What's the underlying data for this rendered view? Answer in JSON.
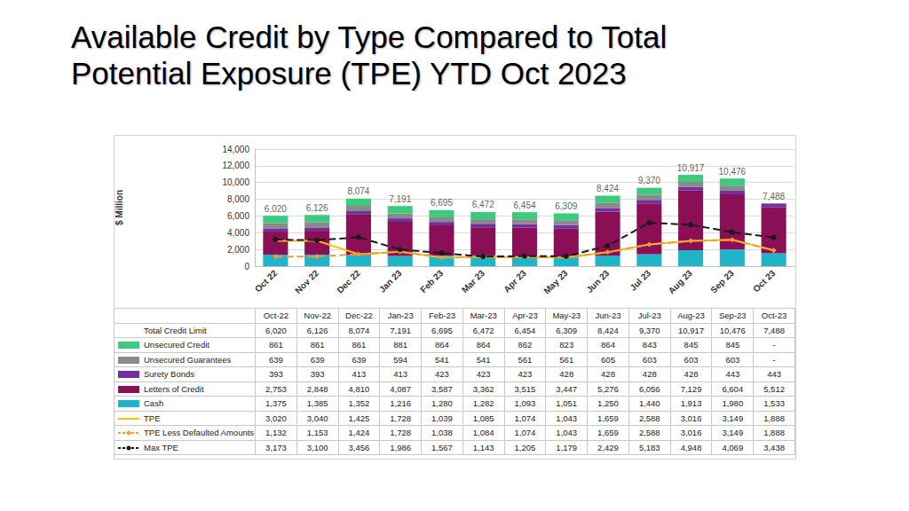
{
  "chart_data": {
    "type": "bar",
    "title": "Available Credit by Type Compared to Total\nPotential Exposure (TPE) YTD Oct 2023",
    "y_label": "$ Million",
    "categories": [
      "Oct 22",
      "Nov 22",
      "Dec 22",
      "Jan 23",
      "Feb 23",
      "Mar 23",
      "Apr 23",
      "May 23",
      "Jun 23",
      "Jul 23",
      "Aug 23",
      "Sep 23",
      "Oct 23"
    ],
    "table_header": [
      "Oct-22",
      "Nov-22",
      "Dec-22",
      "Jan-23",
      "Feb-23",
      "Mar-23",
      "Apr-23",
      "May-23",
      "Jun-23",
      "Jul-23",
      "Aug-23",
      "Sep-23",
      "Oct-23"
    ],
    "ylim": [
      0,
      14000
    ],
    "yticks": [
      0,
      {
        "value": 2000,
        "label": "2,000"
      },
      {
        "value": 4000,
        "label": "4,000"
      },
      {
        "value": 6000,
        "label": "6,000"
      },
      {
        "value": 8000,
        "label": "8,000"
      },
      {
        "value": 10000,
        "label": "10,000"
      },
      {
        "value": 12000,
        "label": "12,000"
      },
      {
        "value": 14000,
        "label": "14,000"
      }
    ],
    "grid": true,
    "stacked": true,
    "data_labels": true,
    "totals": {
      "name": "Total Credit Limit",
      "values": [
        6020,
        6126,
        8074,
        7191,
        6695,
        6472,
        6454,
        6309,
        8424,
        9370,
        10917,
        10476,
        7488
      ],
      "value_labels": [
        "6,020",
        "6,126",
        "8,074",
        "7,191",
        "6,695",
        "6,472",
        "6,454",
        "6,309",
        "8,424",
        "9,370",
        "10,917",
        "10,476",
        "7,488"
      ]
    },
    "series": [
      {
        "name": "Unsecured Credit",
        "type": "bar",
        "color": "#3ccb7c",
        "values": [
          861,
          861,
          861,
          881,
          864,
          864,
          862,
          823,
          864,
          843,
          845,
          845,
          null
        ],
        "value_labels": [
          "861",
          "861",
          "861",
          "881",
          "864",
          "864",
          "862",
          "823",
          "864",
          "843",
          "845",
          "845",
          "-"
        ]
      },
      {
        "name": "Unsecured Guarantees",
        "type": "bar",
        "color": "#8a8a8a",
        "values": [
          639,
          639,
          639,
          594,
          541,
          541,
          561,
          561,
          605,
          603,
          603,
          603,
          null
        ],
        "value_labels": [
          "639",
          "639",
          "639",
          "594",
          "541",
          "541",
          "561",
          "561",
          "605",
          "603",
          "603",
          "603",
          "-"
        ]
      },
      {
        "name": "Surety Bonds",
        "type": "bar",
        "color": "#7030a0",
        "values": [
          393,
          393,
          413,
          413,
          423,
          423,
          423,
          428,
          428,
          428,
          428,
          443,
          443
        ],
        "value_labels": [
          "393",
          "393",
          "413",
          "413",
          "423",
          "423",
          "423",
          "428",
          "428",
          "428",
          "428",
          "443",
          "443"
        ]
      },
      {
        "name": "Letters of Credit",
        "type": "bar",
        "color": "#8b0f56",
        "values": [
          2753,
          2848,
          4810,
          4087,
          3587,
          3362,
          3515,
          3447,
          5276,
          6056,
          7129,
          6604,
          5512
        ],
        "value_labels": [
          "2,753",
          "2,848",
          "4,810",
          "4,087",
          "3,587",
          "3,362",
          "3,515",
          "3,447",
          "5,276",
          "6,056",
          "7,129",
          "6,604",
          "5,512"
        ]
      },
      {
        "name": "Cash",
        "type": "bar",
        "color": "#1fb4c8",
        "values": [
          1375,
          1385,
          1352,
          1216,
          1280,
          1282,
          1093,
          1051,
          1250,
          1440,
          1913,
          1980,
          1533
        ],
        "value_labels": [
          "1,375",
          "1,385",
          "1,352",
          "1,216",
          "1,280",
          "1,282",
          "1,093",
          "1,051",
          "1,250",
          "1,440",
          "1,913",
          "1,980",
          "1,533"
        ]
      },
      {
        "name": "TPE",
        "type": "line",
        "color": "#ffc000",
        "line_style": "solid",
        "marker": "none",
        "values": [
          3020,
          3040,
          1425,
          1728,
          1039,
          1085,
          1074,
          1043,
          1659,
          2588,
          3016,
          3149,
          1888
        ],
        "value_labels": [
          "3,020",
          "3,040",
          "1,425",
          "1,728",
          "1,039",
          "1,085",
          "1,074",
          "1,043",
          "1,659",
          "2,588",
          "3,016",
          "3,149",
          "1,888"
        ]
      },
      {
        "name": "TPE Less Defaulted Amounts",
        "type": "line",
        "color": "#f09a3a",
        "line_style": "dashed",
        "marker": "diamond",
        "values": [
          1132,
          1153,
          1424,
          1728,
          1038,
          1084,
          1074,
          1043,
          1659,
          2588,
          3016,
          3149,
          1888
        ],
        "value_labels": [
          "1,132",
          "1,153",
          "1,424",
          "1,728",
          "1,038",
          "1,084",
          "1,074",
          "1,043",
          "1,659",
          "2,588",
          "3,016",
          "3,149",
          "1,888"
        ]
      },
      {
        "name": "Max TPE",
        "type": "line",
        "color": "#1a1a1a",
        "line_style": "dashed",
        "marker": "circle",
        "values": [
          3173,
          3100,
          3456,
          1986,
          1567,
          1143,
          1205,
          1179,
          2429,
          5183,
          4948,
          4069,
          3438
        ],
        "value_labels": [
          "3,173",
          "3,100",
          "3,456",
          "1,986",
          "1,567",
          "1,143",
          "1,205",
          "1,179",
          "2,429",
          "5,183",
          "4,948",
          "4,069",
          "3,438"
        ]
      }
    ]
  }
}
